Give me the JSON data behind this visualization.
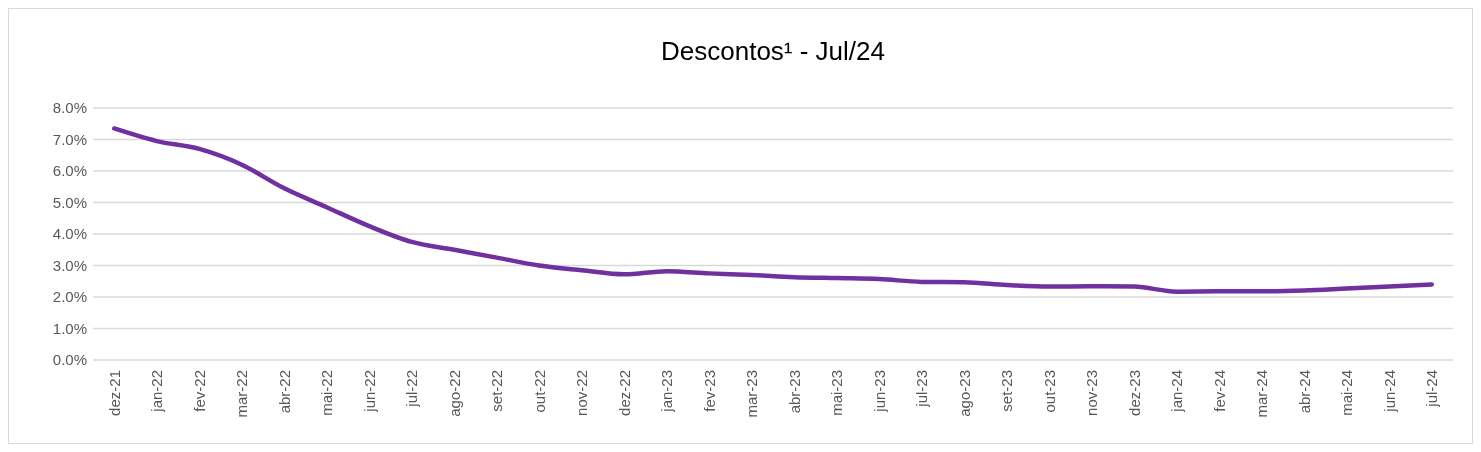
{
  "chart_data": {
    "type": "line",
    "title": "Descontos¹ - Jul/24",
    "categories": [
      "dez-21",
      "jan-22",
      "fev-22",
      "mar-22",
      "abr-22",
      "mai-22",
      "jun-22",
      "jul-22",
      "ago-22",
      "set-22",
      "out-22",
      "nov-22",
      "dez-22",
      "jan-23",
      "fev-23",
      "mar-23",
      "abr-23",
      "mai-23",
      "jun-23",
      "jul-23",
      "ago-23",
      "set-23",
      "out-23",
      "nov-23",
      "dez-23",
      "jan-24",
      "fev-24",
      "mar-24",
      "abr-24",
      "mai-24",
      "jun-24",
      "jul-24"
    ],
    "series": [
      {
        "color": "#7030a0",
        "values": [
          7.35,
          6.95,
          6.7,
          6.2,
          5.45,
          4.85,
          4.25,
          3.75,
          3.5,
          3.25,
          3.0,
          2.85,
          2.72,
          2.82,
          2.75,
          2.7,
          2.63,
          2.6,
          2.57,
          2.48,
          2.47,
          2.38,
          2.33,
          2.34,
          2.33,
          2.17,
          2.18,
          2.18,
          2.21,
          2.27,
          2.33,
          2.4
        ]
      }
    ],
    "ylim": [
      0,
      8
    ],
    "yticks": [
      {
        "value": 0,
        "label": "0.0%"
      },
      {
        "value": 1,
        "label": "1.0%"
      },
      {
        "value": 2,
        "label": "2.0%"
      },
      {
        "value": 3,
        "label": "3.0%"
      },
      {
        "value": 4,
        "label": "4.0%"
      },
      {
        "value": 5,
        "label": "5.0%"
      },
      {
        "value": 6,
        "label": "6.0%"
      },
      {
        "value": 7,
        "label": "7.0%"
      },
      {
        "value": 8,
        "label": "8.0%"
      }
    ],
    "grid": "y",
    "marker": "none",
    "line_style": "solid"
  }
}
